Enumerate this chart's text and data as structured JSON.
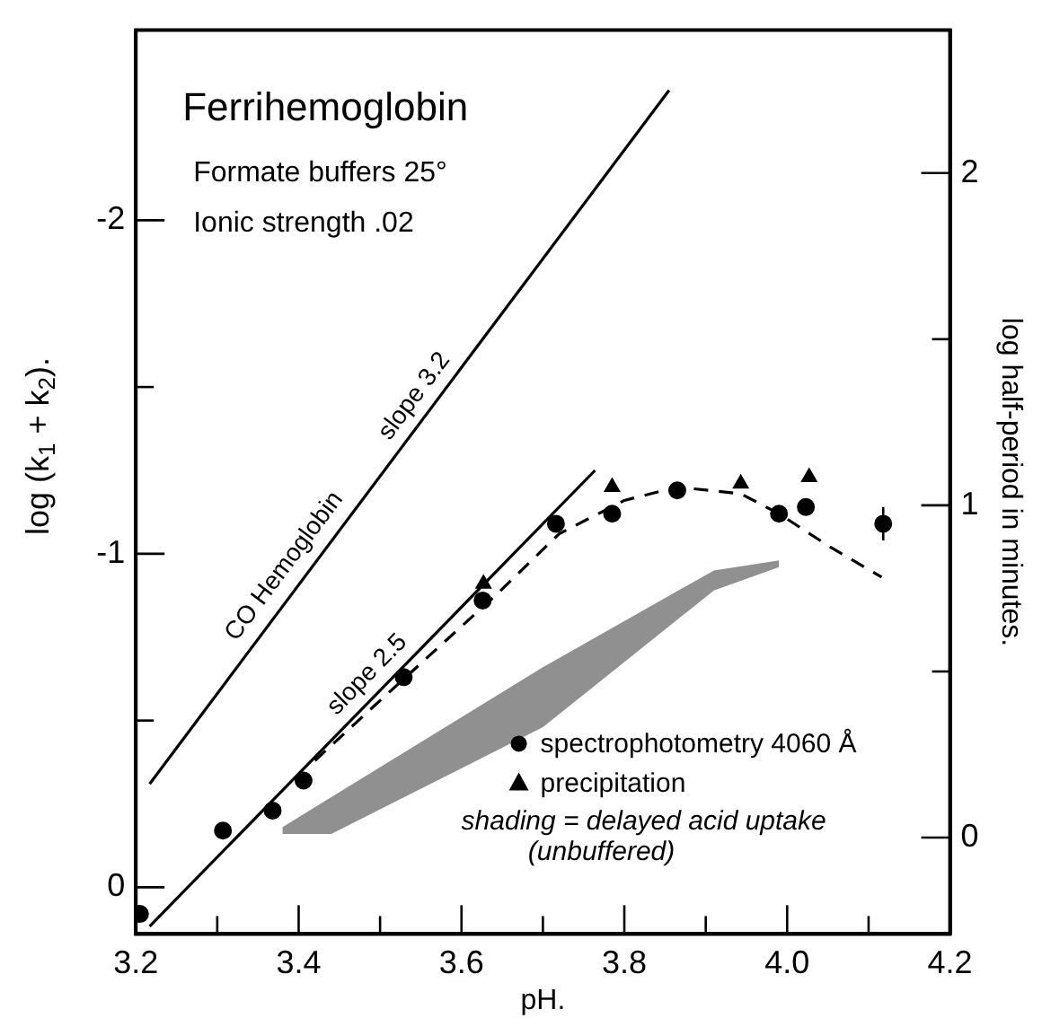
{
  "chart_data": {
    "type": "line",
    "title": "Ferrihemoglobin",
    "xlabel": "pH.",
    "ylabel": "log (k$_{1}$ + k$_{2}$).",
    "y2label": "log half-period in minutes.",
    "annotations": [
      "Formate buffers 25°",
      "Ionic strength .02",
      {
        "text": "CO Hemoglobin",
        "x": 3.4,
        "y": -0.93
      },
      {
        "text": "slope 3.2",
        "x": 3.56,
        "y": -1.44
      },
      {
        "text": "slope 2.5",
        "x": 3.5,
        "y": -0.6
      },
      "shading = delayed acid uptake",
      "(unbuffered)"
    ],
    "xlim": [
      3.2,
      4.2
    ],
    "xticks": [
      3.2,
      {
        "value": 3.3,
        "label": null
      },
      3.4,
      {
        "value": 3.5,
        "label": null
      },
      3.6,
      {
        "value": 3.7,
        "label": null
      },
      3.8,
      {
        "value": 3.9,
        "label": null
      },
      {
        "value": 4,
        "label": "4.0"
      },
      {
        "value": 4.1,
        "label": null
      },
      4.2
    ],
    "ylim": [
      0.14,
      -2.57
    ],
    "yticks": [
      0,
      {
        "value": -0.5,
        "label": null
      },
      -1,
      {
        "value": -1.5,
        "label": null
      },
      -2
    ],
    "y2lim": [
      -0.29,
      2.43
    ],
    "y2ticks": [
      0,
      {
        "value": 0.5,
        "label": null
      },
      1,
      {
        "value": 1.5,
        "label": null
      },
      2
    ],
    "grid": false,
    "legend": "bottom right",
    "series": [
      {
        "x": [
          3.217,
          3.855
        ],
        "values": [
          -0.31,
          -2.39
        ],
        "color": "#000000",
        "marker": "none",
        "line_style": "solid"
      },
      {
        "x": [
          3.217,
          3.764
        ],
        "values": [
          0.117,
          -1.25
        ],
        "color": "#000000",
        "marker": "none",
        "line_style": "solid"
      },
      {
        "x": [
          3.42,
          3.5,
          3.644,
          3.72,
          3.8,
          3.865,
          3.943,
          3.99,
          4.053,
          4.116
        ],
        "values": [
          -0.38,
          -0.56,
          -0.88,
          -1.06,
          -1.16,
          -1.2,
          -1.18,
          -1.12,
          -1.02,
          -0.93
        ],
        "color": "#000000",
        "marker": "none",
        "line_style": "dashed"
      },
      {
        "type": "line",
        "x": [
          3.38,
          3.44,
          3.7,
          3.91,
          3.99
        ],
        "values": [
          null,
          null,
          null,
          null,
          null
        ],
        "lower": [
          -0.16,
          -0.16,
          -0.48,
          -0.89,
          -0.96
        ],
        "upper": [
          -0.18,
          -0.27,
          -0.66,
          -0.95,
          -0.98
        ],
        "color": "#555555"
      },
      {
        "type": "scatter",
        "name": "spectrophotometry 4060 Å",
        "x": [
          3.205,
          3.307,
          3.368,
          3.406,
          3.529,
          3.626,
          3.716,
          3.785,
          3.865,
          3.99,
          4.023,
          4.118
        ],
        "values": [
          0.08,
          -0.17,
          -0.23,
          -0.32,
          -0.63,
          -0.86,
          -1.09,
          -1.12,
          -1.19,
          -1.12,
          -1.14,
          -1.09
        ],
        "errors": [
          null,
          null,
          null,
          null,
          null,
          null,
          null,
          null,
          null,
          null,
          null,
          0.05
        ],
        "color": "#000000",
        "marker": "circle"
      },
      {
        "type": "scatter",
        "name": "precipitation",
        "x": [
          3.627,
          3.785,
          3.943,
          4.027
        ],
        "values": [
          -0.91,
          -1.2,
          -1.21,
          -1.23
        ],
        "color": "#000000",
        "marker": "triangle"
      }
    ]
  }
}
